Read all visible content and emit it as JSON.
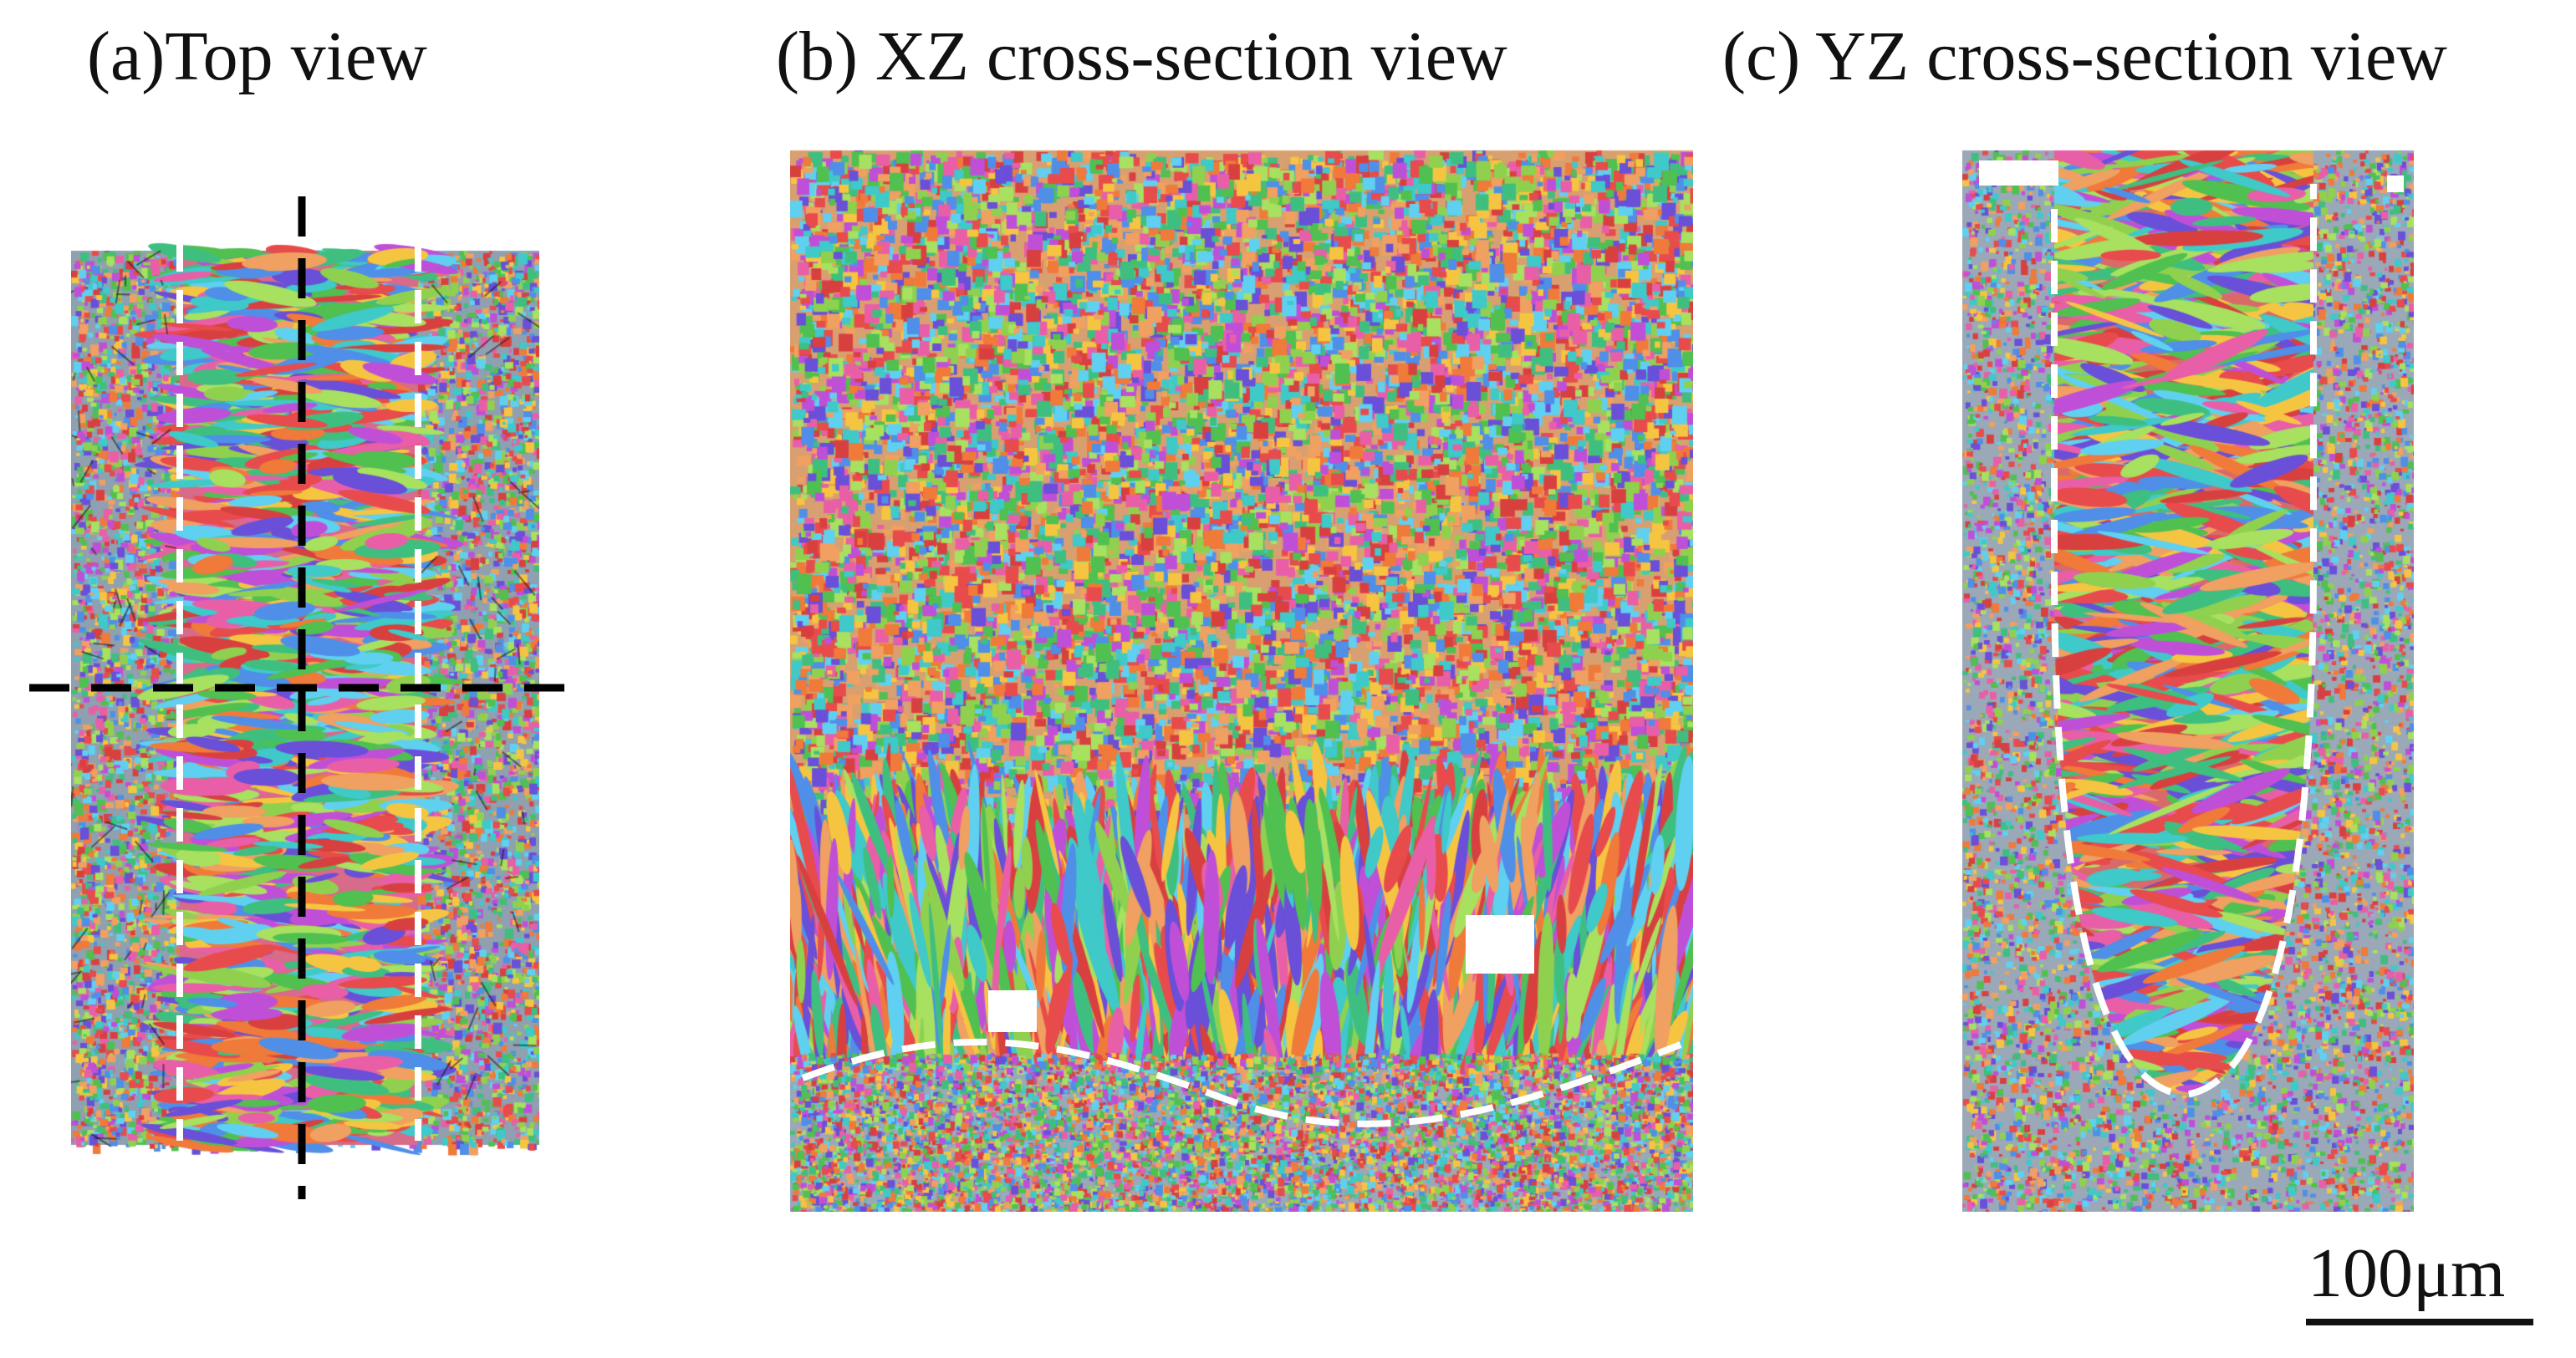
{
  "panels": {
    "top_view": {
      "label": "(a)Top view"
    },
    "xz_view": {
      "label": "(b) XZ cross-section view"
    },
    "yz_view": {
      "label": "(c) YZ cross-section view"
    }
  },
  "scale_bar": {
    "label": "100μm"
  },
  "colors": {
    "fusion_boundary": "#ffffff",
    "section_lines": "#000000",
    "grain_palette": [
      "#e84b4b",
      "#f07a3a",
      "#f5c542",
      "#8fd14f",
      "#3fbf7f",
      "#3fc9c9",
      "#4f8fe8",
      "#6a4fd8",
      "#c04fd8",
      "#e85fa8",
      "#a8e060",
      "#f0a060",
      "#60d0f0",
      "#d84040",
      "#50c050"
    ]
  }
}
